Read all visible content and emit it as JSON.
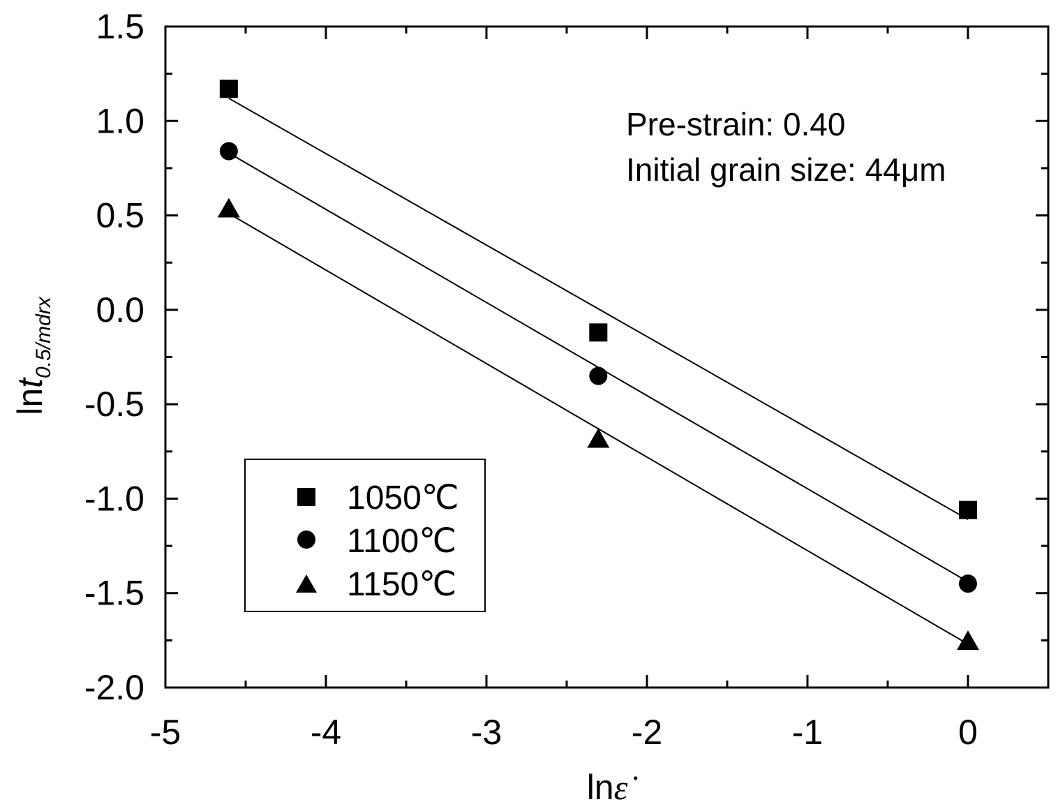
{
  "chart_data": {
    "type": "scatter",
    "title": "",
    "xlabel": {
      "main": "ln",
      "symbol": "ε̇"
    },
    "ylabel": {
      "main": "ln",
      "var": "t",
      "sub": "0.5/mdrx"
    },
    "xlim": [
      -5,
      0.5
    ],
    "ylim": [
      -2.0,
      1.5
    ],
    "x_major_ticks": [
      -5,
      -4,
      -3,
      -2,
      -1,
      0
    ],
    "x_tick_labels": [
      "-5",
      "-4",
      "-3",
      "-2",
      "-1",
      "0"
    ],
    "y_major_ticks": [
      -2.0,
      -1.5,
      -1.0,
      -0.5,
      0.0,
      0.5,
      1.0,
      1.5
    ],
    "y_tick_labels": [
      "-2.0",
      "-1.5",
      "-1.0",
      "-0.5",
      "0.0",
      "0.5",
      "1.0",
      "1.5"
    ],
    "grid": false,
    "legend_position": "bottom-left",
    "annotations": [
      "Pre-strain: 0.40",
      "Initial grain size: 44μm"
    ],
    "series": [
      {
        "name": "1050℃",
        "marker": "square",
        "x": [
          -4.605,
          -2.303,
          0.0
        ],
        "y": [
          1.17,
          -0.12,
          -1.06
        ],
        "fit": {
          "x": [
            -4.605,
            0.0
          ],
          "y": [
            1.12,
            -1.11
          ]
        }
      },
      {
        "name": "1100℃",
        "marker": "circle",
        "x": [
          -4.605,
          -2.303,
          0.0
        ],
        "y": [
          0.84,
          -0.35,
          -1.45
        ],
        "fit": {
          "x": [
            -4.605,
            0.0
          ],
          "y": [
            0.83,
            -1.44
          ]
        }
      },
      {
        "name": "1150℃",
        "marker": "triangle",
        "x": [
          -4.605,
          -2.303,
          0.0
        ],
        "y": [
          0.53,
          -0.69,
          -1.76
        ],
        "fit": {
          "x": [
            -4.605,
            0.0
          ],
          "y": [
            0.51,
            -1.77
          ]
        }
      }
    ]
  }
}
